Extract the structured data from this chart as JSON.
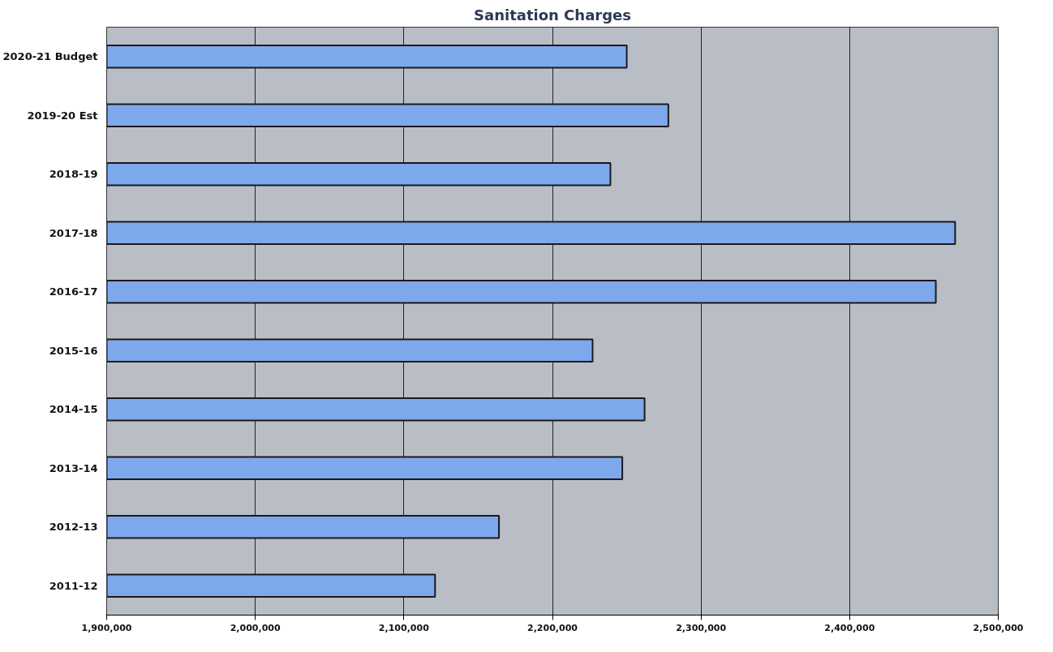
{
  "chart_data": {
    "type": "bar",
    "orientation": "horizontal",
    "title": "Sanitation Charges",
    "categories": [
      "2020-21 Budget",
      "2019-20 Est",
      "2018-19",
      "2017-18",
      "2016-17",
      "2015-16",
      "2014-15",
      "2013-14",
      "2012-13",
      "2011-12"
    ],
    "values": [
      2250000,
      2278000,
      2239000,
      2471000,
      2458000,
      2227000,
      2262000,
      2247000,
      2164000,
      2121000
    ],
    "color": "#7ea8ec",
    "xlim": [
      1900000,
      2500000
    ],
    "xticks": [
      {
        "value": 1900000,
        "label": "1,900,000"
      },
      {
        "value": 2000000,
        "label": "2,000,000"
      },
      {
        "value": 2100000,
        "label": "2,100,000"
      },
      {
        "value": 2200000,
        "label": "2,200,000"
      },
      {
        "value": 2300000,
        "label": "2,300,000"
      },
      {
        "value": 2400000,
        "label": "2,400,000"
      },
      {
        "value": 2500000,
        "label": "2,500,000"
      }
    ],
    "grid": "x"
  }
}
